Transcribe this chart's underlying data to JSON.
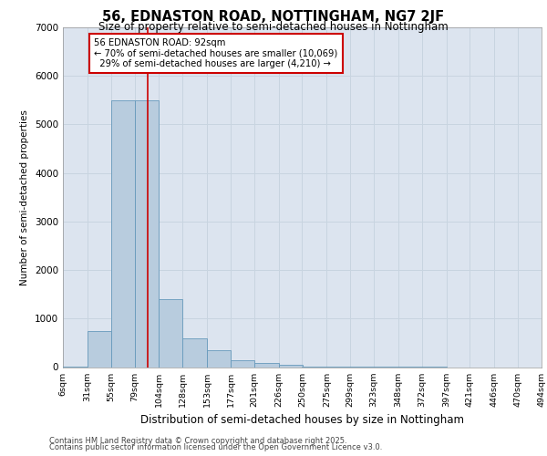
{
  "title": "56, EDNASTON ROAD, NOTTINGHAM, NG7 2JF",
  "subtitle": "Size of property relative to semi-detached houses in Nottingham",
  "xlabel": "Distribution of semi-detached houses by size in Nottingham",
  "ylabel": "Number of semi-detached properties",
  "bin_edges": [
    6,
    31,
    55,
    79,
    104,
    128,
    153,
    177,
    201,
    226,
    250,
    275,
    299,
    323,
    348,
    372,
    397,
    421,
    446,
    470,
    494
  ],
  "bin_labels": [
    "6sqm",
    "31sqm",
    "55sqm",
    "79sqm",
    "104sqm",
    "128sqm",
    "153sqm",
    "177sqm",
    "201sqm",
    "226sqm",
    "250sqm",
    "275sqm",
    "299sqm",
    "323sqm",
    "348sqm",
    "372sqm",
    "397sqm",
    "421sqm",
    "446sqm",
    "470sqm",
    "494sqm"
  ],
  "bar_values": [
    10,
    750,
    5500,
    5500,
    1400,
    600,
    350,
    150,
    80,
    50,
    15,
    5,
    3,
    2,
    1,
    1,
    0,
    0,
    0,
    0
  ],
  "bar_color": "#b8ccde",
  "bar_edge_color": "#6699bb",
  "grid_color": "#c8d4e0",
  "background_color": "#dce4ef",
  "property_size": 92,
  "property_label": "56 EDNASTON ROAD: 92sqm",
  "pct_smaller": 70,
  "count_smaller": 10069,
  "pct_larger": 29,
  "count_larger": 4210,
  "vline_color": "#cc0000",
  "annotation_box_edge": "#cc0000",
  "ylim": [
    0,
    7000
  ],
  "yticks": [
    0,
    1000,
    2000,
    3000,
    4000,
    5000,
    6000,
    7000
  ],
  "footer_line1": "Contains HM Land Registry data © Crown copyright and database right 2025.",
  "footer_line2": "Contains public sector information licensed under the Open Government Licence v3.0."
}
